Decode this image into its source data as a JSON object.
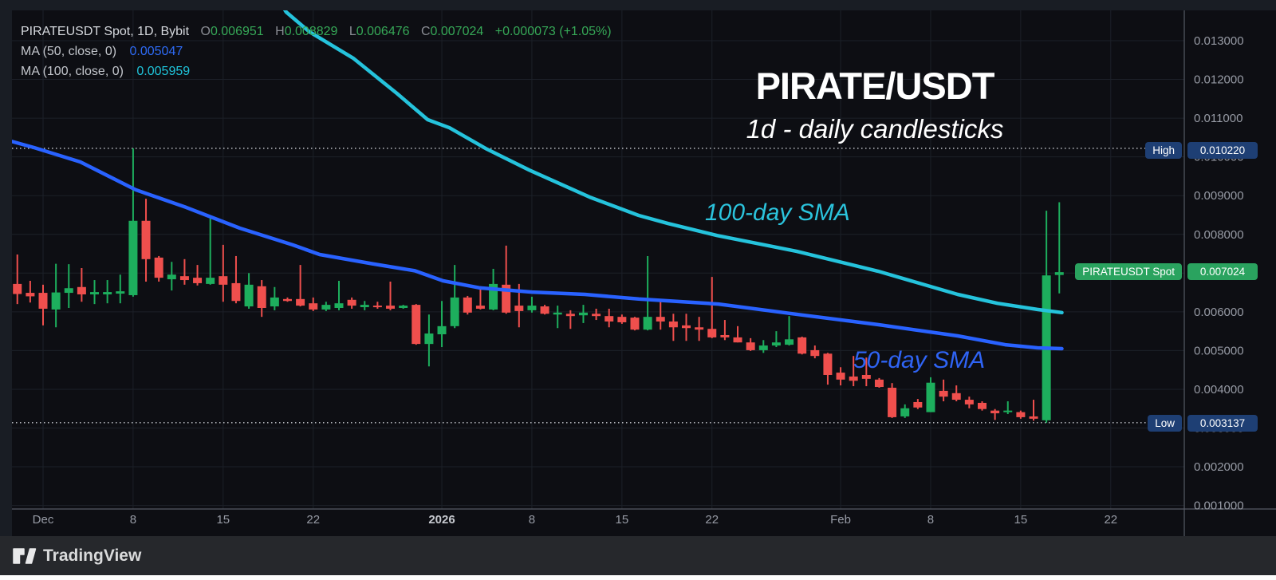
{
  "legend": {
    "symbol_line": "PIRATEUSDT Spot, 1D, Bybit",
    "ohlc": {
      "o_label": "O",
      "o": "0.006951",
      "h_label": "H",
      "h": "0.008829",
      "l_label": "L",
      "l": "0.006476",
      "c_label": "C",
      "c": "0.007024",
      "change": "+0.000073 (+1.05%)"
    },
    "ma50_label": "MA (50, close, 0)",
    "ma50_value": "0.005047",
    "ma100_label": "MA (100, close, 0)",
    "ma100_value": "0.005959"
  },
  "title": {
    "main": "PIRATE/USDT",
    "subtitle": "1d - daily candlesticks"
  },
  "annotations": {
    "sma100_label": "100-day SMA",
    "sma50_label": "50-day SMA"
  },
  "badges": {
    "high": {
      "label": "High",
      "value": "0.010220"
    },
    "last": {
      "label": "PIRATEUSDT Spot",
      "value": "0.007024"
    },
    "low": {
      "label": "Low",
      "value": "0.003137"
    }
  },
  "watermark": {
    "text": "TradingView"
  },
  "colors": {
    "up": "#1dae5d",
    "down": "#ef4f4d",
    "ma50": "#2962ff",
    "ma100": "#25c3dc",
    "plot_bg": "#0d0e13",
    "frame_bg": "#191d24",
    "grid": "#1c2028",
    "axis_line": "#565a64",
    "axis_text": "#979ba5",
    "axis_text_bold": "#c6c9cf",
    "marker_line": "#cdd0d6",
    "badge_blue": "#1e3f74",
    "badge_green": "#2aa35f",
    "legend_green": "#36a857"
  },
  "chart_data": {
    "type": "candlestick",
    "title": "PIRATE/USDT",
    "interval": "1d - daily candlesticks",
    "exchange": "Bybit",
    "symbol": "PIRATEUSDT Spot",
    "y_axis": {
      "min": 0.001,
      "max": 0.013,
      "step": 0.001,
      "labels": [
        {
          "value": 0.013,
          "label": "0.013000"
        },
        {
          "value": 0.012,
          "label": "0.012000"
        },
        {
          "value": 0.011,
          "label": "0.011000"
        },
        {
          "value": 0.01,
          "label": "0.010000"
        },
        {
          "value": 0.009,
          "label": "0.009000"
        },
        {
          "value": 0.008,
          "label": "0.008000"
        },
        {
          "value": 0.007,
          "label": "0.007000"
        },
        {
          "value": 0.006,
          "label": "0.006000"
        },
        {
          "value": 0.005,
          "label": "0.005000"
        },
        {
          "value": 0.004,
          "label": "0.004000"
        },
        {
          "value": 0.003,
          "label": "0.003000"
        },
        {
          "value": 0.002,
          "label": "0.002000"
        },
        {
          "value": 0.001,
          "label": "0.001000"
        }
      ]
    },
    "x_axis": {
      "ticks": [
        {
          "label": "Dec",
          "day": 0,
          "bold": false
        },
        {
          "label": "8",
          "day": 7,
          "bold": false
        },
        {
          "label": "15",
          "day": 14,
          "bold": false
        },
        {
          "label": "22",
          "day": 21,
          "bold": false
        },
        {
          "label": "2026",
          "day": 31,
          "bold": true
        },
        {
          "label": "8",
          "day": 38,
          "bold": false
        },
        {
          "label": "15",
          "day": 45,
          "bold": false
        },
        {
          "label": "22",
          "day": 52,
          "bold": false
        },
        {
          "label": "Feb",
          "day": 62,
          "bold": false
        },
        {
          "label": "8",
          "day": 69,
          "bold": false
        },
        {
          "label": "15",
          "day": 76,
          "bold": false
        },
        {
          "label": "22",
          "day": 83,
          "bold": false
        }
      ]
    },
    "markers": {
      "high": 0.01022,
      "low": 0.003137,
      "last": 0.007024
    },
    "first_candle_day": -2,
    "candles": [
      [
        "Nov 29",
        0.00672,
        0.00748,
        0.0062,
        0.00646
      ],
      [
        "Nov 30",
        0.00649,
        0.0068,
        0.00624,
        0.0064
      ],
      [
        "Dec 1",
        0.00649,
        0.0067,
        0.00565,
        0.00608
      ],
      [
        "Dec 2",
        0.00606,
        0.00724,
        0.0056,
        0.0065
      ],
      [
        "Dec 3",
        0.00649,
        0.00723,
        0.0061,
        0.00661
      ],
      [
        "Dec 4",
        0.00664,
        0.00713,
        0.00626,
        0.00645
      ],
      [
        "Dec 5",
        0.00645,
        0.00682,
        0.0062,
        0.00651
      ],
      [
        "Dec 6",
        0.00645,
        0.00682,
        0.00622,
        0.00651
      ],
      [
        "Dec 7",
        0.00647,
        0.00696,
        0.00622,
        0.00653
      ],
      [
        "Dec 8",
        0.00643,
        0.01022,
        0.00639,
        0.00835
      ],
      [
        "Dec 9",
        0.00835,
        0.00892,
        0.00678,
        0.00736
      ],
      [
        "Dec 10",
        0.0074,
        0.00744,
        0.00678,
        0.00688
      ],
      [
        "Dec 11",
        0.00684,
        0.00729,
        0.00655,
        0.00696
      ],
      [
        "Dec 12",
        0.00692,
        0.00736,
        0.0067,
        0.00682
      ],
      [
        "Dec 13",
        0.00688,
        0.00721,
        0.00668,
        0.00674
      ],
      [
        "Dec 14",
        0.00672,
        0.00841,
        0.0067,
        0.00688
      ],
      [
        "Dec 15",
        0.00692,
        0.00773,
        0.00626,
        0.0067
      ],
      [
        "Dec 16",
        0.00674,
        0.00744,
        0.00622,
        0.00628
      ],
      [
        "Dec 17",
        0.00614,
        0.007,
        0.00608,
        0.0067
      ],
      [
        "Dec 18",
        0.00666,
        0.00682,
        0.00587,
        0.0061
      ],
      [
        "Dec 19",
        0.00614,
        0.00664,
        0.00604,
        0.00637
      ],
      [
        "Dec 20",
        0.00633,
        0.00637,
        0.00626,
        0.00628
      ],
      [
        "Dec 21",
        0.00633,
        0.00721,
        0.00614,
        0.00616
      ],
      [
        "Dec 22",
        0.00622,
        0.00637,
        0.00602,
        0.00606
      ],
      [
        "Dec 23",
        0.00606,
        0.00626,
        0.00602,
        0.00618
      ],
      [
        "Dec 24",
        0.0061,
        0.0068,
        0.00604,
        0.00622
      ],
      [
        "Dec 25",
        0.00631,
        0.00637,
        0.00608,
        0.00616
      ],
      [
        "Dec 26",
        0.00612,
        0.00628,
        0.00604,
        0.00618
      ],
      [
        "Dec 27",
        0.00616,
        0.00626,
        0.00608,
        0.00612
      ],
      [
        "Dec 28",
        0.00616,
        0.00678,
        0.00604,
        0.00608
      ],
      [
        "Dec 29",
        0.0061,
        0.00618,
        0.00608,
        0.00616
      ],
      [
        "Dec 30",
        0.00618,
        0.0062,
        0.00515,
        0.00517
      ],
      [
        "Dec 31",
        0.00517,
        0.00593,
        0.00459,
        0.00544
      ],
      [
        "Jan 1",
        0.00542,
        0.00628,
        0.00509,
        0.00563
      ],
      [
        "Jan 2",
        0.00563,
        0.00721,
        0.00558,
        0.00637
      ],
      [
        "Jan 3",
        0.00637,
        0.00641,
        0.00593,
        0.00598
      ],
      [
        "Jan 4",
        0.00616,
        0.00666,
        0.00606,
        0.00608
      ],
      [
        "Jan 5",
        0.00606,
        0.00711,
        0.00604,
        0.00672
      ],
      [
        "Jan 6",
        0.0067,
        0.00771,
        0.00595,
        0.00598
      ],
      [
        "Jan 7",
        0.00616,
        0.00672,
        0.0056,
        0.00602
      ],
      [
        "Jan 8",
        0.00604,
        0.00639,
        0.00598,
        0.00616
      ],
      [
        "Jan 9",
        0.00614,
        0.00618,
        0.00593,
        0.00595
      ],
      [
        "Jan 10",
        0.00593,
        0.00616,
        0.00558,
        0.00598
      ],
      [
        "Jan 11",
        0.00595,
        0.00604,
        0.00556,
        0.00589
      ],
      [
        "Jan 12",
        0.00591,
        0.00618,
        0.00571,
        0.00598
      ],
      [
        "Jan 13",
        0.00595,
        0.00608,
        0.00579,
        0.00589
      ],
      [
        "Jan 14",
        0.00589,
        0.00608,
        0.0056,
        0.00575
      ],
      [
        "Jan 15",
        0.00587,
        0.00593,
        0.00569,
        0.00573
      ],
      [
        "Jan 16",
        0.00585,
        0.00587,
        0.00552,
        0.00554
      ],
      [
        "Jan 17",
        0.00554,
        0.00744,
        0.00552,
        0.00587
      ],
      [
        "Jan 18",
        0.00587,
        0.00628,
        0.00554,
        0.00575
      ],
      [
        "Jan 19",
        0.00575,
        0.00595,
        0.00525,
        0.0056
      ],
      [
        "Jan 20",
        0.00565,
        0.00595,
        0.00525,
        0.00558
      ],
      [
        "Jan 21",
        0.0056,
        0.00587,
        0.00525,
        0.00554
      ],
      [
        "Jan 22",
        0.00556,
        0.0069,
        0.00532,
        0.00534
      ],
      [
        "Jan 23",
        0.0054,
        0.00579,
        0.00527,
        0.00534
      ],
      [
        "Jan 24",
        0.00534,
        0.00563,
        0.00521,
        0.00521
      ],
      [
        "Jan 25",
        0.00521,
        0.00532,
        0.00499,
        0.00501
      ],
      [
        "Jan 26",
        0.00501,
        0.00527,
        0.00494,
        0.00513
      ],
      [
        "Jan 27",
        0.00513,
        0.0055,
        0.00509,
        0.00521
      ],
      [
        "Jan 28",
        0.00515,
        0.00589,
        0.00513,
        0.00529
      ],
      [
        "Jan 29",
        0.00534,
        0.00536,
        0.0049,
        0.00492
      ],
      [
        "Jan 30",
        0.00501,
        0.00513,
        0.0048,
        0.00486
      ],
      [
        "Jan 31",
        0.00492,
        0.00494,
        0.00412,
        0.00437
      ],
      [
        "Feb 1",
        0.00443,
        0.00457,
        0.0041,
        0.00425
      ],
      [
        "Feb 2",
        0.00433,
        0.00486,
        0.00408,
        0.00422
      ],
      [
        "Feb 3",
        0.00437,
        0.00482,
        0.00408,
        0.00427
      ],
      [
        "Feb 4",
        0.00425,
        0.00429,
        0.00404,
        0.00406
      ],
      [
        "Feb 5",
        0.00404,
        0.00416,
        0.00326,
        0.00328
      ],
      [
        "Feb 6",
        0.0033,
        0.00361,
        0.00326,
        0.00351
      ],
      [
        "Feb 7",
        0.00367,
        0.00375,
        0.00349,
        0.00353
      ],
      [
        "Feb 8",
        0.00341,
        0.00431,
        0.00341,
        0.00417
      ],
      [
        "Feb 9",
        0.00396,
        0.00425,
        0.00369,
        0.00381
      ],
      [
        "Feb 10",
        0.0039,
        0.0041,
        0.00369,
        0.00373
      ],
      [
        "Feb 11",
        0.00373,
        0.00381,
        0.00351,
        0.00361
      ],
      [
        "Feb 12",
        0.00365,
        0.00369,
        0.00345,
        0.00349
      ],
      [
        "Feb 13",
        0.00345,
        0.00349,
        0.00321,
        0.00338
      ],
      [
        "Feb 14",
        0.00341,
        0.00369,
        0.00336,
        0.00345
      ],
      [
        "Feb 15",
        0.00341,
        0.00345,
        0.00324,
        0.00328
      ],
      [
        "Feb 16",
        0.0033,
        0.00373,
        0.00319,
        0.00324
      ],
      [
        "Feb 17",
        0.0032,
        0.00861,
        0.003137,
        0.00694
      ],
      [
        "Feb 18",
        0.006951,
        0.008829,
        0.006476,
        0.007024
      ]
    ],
    "series": [
      {
        "name": "MA50",
        "legend": "MA (50, close, 0)",
        "last_value": 0.005047,
        "color": "#2962ff",
        "points": [
          [
            -3.4,
            0.01049
          ],
          [
            -0.7,
            0.01024
          ],
          [
            2.9,
            0.00987
          ],
          [
            7.2,
            0.00915
          ],
          [
            11.1,
            0.0087
          ],
          [
            15.3,
            0.00816
          ],
          [
            19.4,
            0.00773
          ],
          [
            21.5,
            0.00748
          ],
          [
            25.6,
            0.00724
          ],
          [
            28.9,
            0.00706
          ],
          [
            31.1,
            0.0068
          ],
          [
            33.9,
            0.00662
          ],
          [
            38,
            0.00651
          ],
          [
            42.1,
            0.00645
          ],
          [
            46.3,
            0.00633
          ],
          [
            52.5,
            0.0062
          ],
          [
            58.7,
            0.00593
          ],
          [
            64.9,
            0.00567
          ],
          [
            71.1,
            0.00538
          ],
          [
            74.8,
            0.00515
          ],
          [
            77.3,
            0.00507
          ],
          [
            79.2,
            0.00505
          ]
        ]
      },
      {
        "name": "MA100",
        "legend": "MA (100, close, 0)",
        "last_value": 0.005959,
        "color": "#25c3dc",
        "points": [
          [
            18.3,
            0.01405
          ],
          [
            18.9,
            0.01374
          ],
          [
            20.7,
            0.01323
          ],
          [
            24.1,
            0.01255
          ],
          [
            27.5,
            0.01164
          ],
          [
            29.9,
            0.01096
          ],
          [
            31.6,
            0.01075
          ],
          [
            34.5,
            0.0102
          ],
          [
            37.8,
            0.00966
          ],
          [
            42.5,
            0.00896
          ],
          [
            46.3,
            0.00849
          ],
          [
            48.6,
            0.00828
          ],
          [
            52.4,
            0.00797
          ],
          [
            58.6,
            0.00756
          ],
          [
            64.9,
            0.00705
          ],
          [
            71.1,
            0.00645
          ],
          [
            74.2,
            0.00622
          ],
          [
            77.3,
            0.00606
          ],
          [
            79.2,
            0.00598
          ]
        ]
      }
    ]
  }
}
